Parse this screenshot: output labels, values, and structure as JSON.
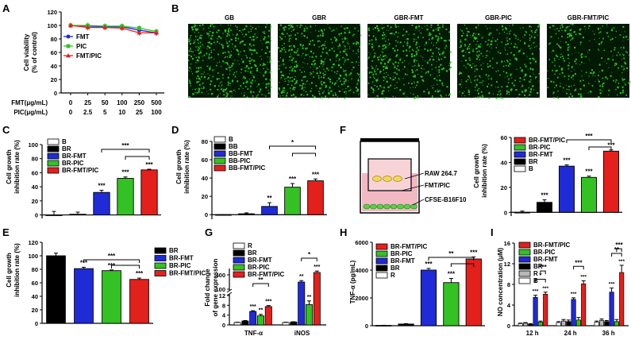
{
  "colors": {
    "white": "#ffffff",
    "black": "#000000",
    "gray": "#b8b8b8",
    "blue": "#1f2bd6",
    "green": "#34c124",
    "red": "#e3201b"
  },
  "panelA": {
    "letter": "A",
    "ylabel1": "Cell viability",
    "ylabel2": "(% of control)",
    "row1_label": "FMT(μg/mL)",
    "row2_label": "PIC(μg/mL)",
    "chart_data": {
      "type": "line",
      "categories": [
        "0",
        "25",
        "50",
        "100",
        "250",
        "500"
      ],
      "row2_categories": [
        "0",
        "2.5",
        "5",
        "10",
        "25",
        "100"
      ],
      "ylim": [
        0,
        120
      ],
      "yticks": [
        0,
        20,
        40,
        60,
        80,
        100,
        120
      ],
      "legend": [
        "FMT",
        "PIC",
        "FMT/PIC"
      ],
      "series": [
        {
          "name": "FMT",
          "color": "#1f2bd6",
          "marker": "circle",
          "values": [
            100,
            99,
            98,
            98,
            93,
            89
          ]
        },
        {
          "name": "PIC",
          "color": "#34c124",
          "marker": "square",
          "values": [
            100,
            100,
            99,
            99,
            96,
            91
          ]
        },
        {
          "name": "FMT/PIC",
          "color": "#e3201b",
          "marker": "triangle",
          "values": [
            100,
            97,
            97,
            96,
            89,
            89
          ]
        }
      ]
    }
  },
  "panelB": {
    "letter": "B",
    "images": [
      "GB",
      "GBR",
      "GBR-FMT",
      "GBR-PIC",
      "GBR-FMT/PIC"
    ]
  },
  "panelC": {
    "letter": "C",
    "ylabel1": "Cell growth",
    "ylabel2": "inhibition rate (%)",
    "chart_data": {
      "type": "bar",
      "categories": [
        "B",
        "BR",
        "BR-FMT",
        "BR-PIC",
        "BR-FMT/PIC"
      ],
      "values": [
        0,
        1,
        32,
        52,
        64
      ],
      "errors": [
        5,
        3,
        3,
        2,
        1
      ],
      "colors": [
        "#ffffff",
        "#000000",
        "#1f2bd6",
        "#34c124",
        "#e3201b"
      ],
      "labels": [
        "",
        "",
        "***",
        "***",
        "***"
      ],
      "ylim": [
        -5,
        100
      ],
      "yticks": [
        0,
        20,
        40,
        60,
        80,
        100
      ],
      "brackets": [
        {
          "from": 2,
          "to": 4,
          "label": "***"
        },
        {
          "from": 3,
          "to": 4,
          "label": ""
        }
      ]
    }
  },
  "panelD": {
    "letter": "D",
    "ylabel1": "Cell growth",
    "ylabel2": "inhibition rate (%)",
    "chart_data": {
      "type": "bar",
      "categories": [
        "B",
        "BB",
        "BB-FMT",
        "BB-PIC",
        "BB-FMT/PIC"
      ],
      "values": [
        0,
        1,
        9,
        30,
        37
      ],
      "errors": [
        0,
        1,
        4,
        4,
        2
      ],
      "colors": [
        "#ffffff",
        "#000000",
        "#1f2bd6",
        "#34c124",
        "#e3201b"
      ],
      "labels": [
        "",
        "",
        "**",
        "***",
        "***"
      ],
      "ylim": [
        -5,
        80
      ],
      "yticks": [
        0,
        20,
        40,
        60,
        80
      ],
      "brackets": [
        {
          "from": 2,
          "to": 4,
          "label": "*"
        },
        {
          "from": 3,
          "to": 4,
          "label": ""
        }
      ]
    }
  },
  "panelE": {
    "letter": "E",
    "ylabel1": "Cell growth",
    "ylabel2": "inhibition rate (%)",
    "chart_data": {
      "type": "bar",
      "categories": [
        "BR",
        "BR-FMT",
        "BR-PIC",
        "BR-FMT/PIC"
      ],
      "values": [
        100,
        81,
        78,
        65
      ],
      "errors": [
        4,
        2,
        1,
        2
      ],
      "colors": [
        "#000000",
        "#1f2bd6",
        "#34c124",
        "#e3201b"
      ],
      "labels": [
        "",
        "***",
        "***",
        "***"
      ],
      "ylim": [
        0,
        120
      ],
      "yticks": [
        0,
        20,
        40,
        60,
        80,
        100,
        120
      ],
      "brackets": [
        {
          "from": 1,
          "to": 3,
          "label": "***"
        },
        {
          "from": 2,
          "to": 3,
          "label": ""
        }
      ]
    }
  },
  "panelF": {
    "letter": "F",
    "schematic_labels": [
      "RAW 264.7",
      "FMT/PIC",
      "CFSE-B16F10"
    ],
    "ylabel1": "Cell growth",
    "ylabel2": "inhibition rate (%)",
    "chart_data": {
      "type": "bar",
      "categories": [
        "B",
        "BR",
        "BR-PIC",
        "BR-FMT",
        "BR-FMT/PIC"
      ],
      "bar_order": [
        "B",
        "BR",
        "BR-FMT",
        "BR-PIC",
        "BR-FMT/PIC"
      ],
      "values": [
        0,
        8,
        37,
        28,
        49
      ],
      "errors": [
        1,
        2,
        1,
        1,
        1
      ],
      "colors": [
        "#ffffff",
        "#000000",
        "#1f2bd6",
        "#34c124",
        "#e3201b"
      ],
      "labels": [
        "",
        "***",
        "***",
        "***",
        "***"
      ],
      "ylim": [
        -3,
        60
      ],
      "yticks": [
        0,
        20,
        40,
        60
      ],
      "legend": [
        "BR-FMT/PIC",
        "BR-PIC",
        "BR-FMT",
        "BR",
        "B"
      ],
      "brackets": [
        {
          "from": 2,
          "to": 4,
          "label": "***"
        },
        {
          "from": 3,
          "to": 4,
          "label": ""
        }
      ]
    }
  },
  "panelG": {
    "letter": "G",
    "ylabel1": "Fold change",
    "ylabel2": "of gene expression",
    "chart_data": {
      "type": "bar",
      "groups": [
        "TNF-α",
        "iNOS"
      ],
      "series": [
        {
          "name": "R",
          "color": "#ffffff",
          "values": [
            1,
            1
          ],
          "errors": [
            0.1,
            0.1
          ]
        },
        {
          "name": "BR",
          "color": "#000000",
          "values": [
            1.6,
            1.2
          ],
          "errors": [
            0.2,
            0.1
          ]
        },
        {
          "name": "BR-FMT",
          "color": "#1f2bd6",
          "values": [
            5.5,
            250
          ],
          "errors": [
            0.3,
            30
          ]
        },
        {
          "name": "BR-PIC",
          "color": "#34c124",
          "values": [
            3.7,
            8.3
          ],
          "errors": [
            0.6,
            1.5
          ]
        },
        {
          "name": "BR-FMT/PIC",
          "color": "#e3201b",
          "values": [
            7.5,
            450
          ],
          "errors": [
            0.4,
            80
          ]
        }
      ],
      "labels": [
        [
          "",
          "",
          "***",
          "**",
          "***"
        ],
        [
          "",
          "",
          "**",
          "**",
          "***"
        ]
      ],
      "yticks_lower": [
        0,
        4,
        8,
        12
      ],
      "yticks_upper": [
        100,
        400
      ],
      "axis_break": true,
      "brackets": [
        {
          "group": 0,
          "from": 2,
          "to": 4,
          "label": "**"
        },
        {
          "group": 1,
          "from": 2,
          "to": 4,
          "label": "*"
        }
      ]
    }
  },
  "panelH": {
    "letter": "H",
    "ylabel": "TNF-α (pg/mL)",
    "chart_data": {
      "type": "bar",
      "categories": [
        "R",
        "BR",
        "BR-FMT",
        "BR-PIC",
        "BR-FMT/PIC"
      ],
      "values": [
        20,
        120,
        4000,
        3100,
        4800
      ],
      "errors": [
        10,
        30,
        120,
        300,
        150
      ],
      "colors": [
        "#ffffff",
        "#000000",
        "#1f2bd6",
        "#34c124",
        "#e3201b"
      ],
      "labels": [
        "",
        "",
        "***",
        "***",
        "***"
      ],
      "ylim": [
        0,
        6000
      ],
      "yticks": [
        0,
        2000,
        4000,
        6000
      ],
      "legend": [
        "BR-FMT/PIC",
        "BR-PIC",
        "BR-FMT",
        "BR",
        "R"
      ],
      "brackets": [
        {
          "from": 2,
          "to": 4,
          "label": "**"
        },
        {
          "from": 3,
          "to": 4,
          "label": ""
        }
      ]
    }
  },
  "panelI": {
    "letter": "I",
    "ylabel": "NO concentration (μM)",
    "chart_data": {
      "type": "bar",
      "groups": [
        "12 h",
        "24 h",
        "36 h"
      ],
      "series": [
        {
          "name": "B",
          "color": "#ffffff",
          "values": [
            0.4,
            0.6,
            0.7
          ],
          "errors": [
            0.1,
            0.2,
            0.2
          ]
        },
        {
          "name": "R",
          "color": "#b8b8b8",
          "values": [
            0.5,
            0.9,
            1.0
          ],
          "errors": [
            0.1,
            0.3,
            0.3
          ]
        },
        {
          "name": "BR",
          "color": "#000000",
          "values": [
            0.3,
            0.8,
            0.8
          ],
          "errors": [
            0.1,
            0.3,
            0.2
          ]
        },
        {
          "name": "BR-FMT",
          "color": "#1f2bd6",
          "values": [
            5.5,
            5.1,
            6.5
          ],
          "errors": [
            0.4,
            0.3,
            0.8
          ]
        },
        {
          "name": "BR-PIC",
          "color": "#34c124",
          "values": [
            0.7,
            1.1,
            0.8
          ],
          "errors": [
            0.2,
            0.5,
            0.4
          ]
        },
        {
          "name": "BR-FMT/PIC",
          "color": "#e3201b",
          "values": [
            6.1,
            8.1,
            10.3
          ],
          "errors": [
            0.4,
            0.6,
            1.4
          ]
        }
      ],
      "labels": [
        [
          "",
          "",
          "",
          "***",
          "",
          "***"
        ],
        [
          "",
          "",
          "",
          "***",
          "",
          "***"
        ],
        [
          "",
          "",
          "",
          "***",
          "",
          "***"
        ]
      ],
      "ylim": [
        0,
        16
      ],
      "yticks": [
        0,
        4,
        8,
        12,
        16
      ],
      "legend": [
        "BR-FMT/PIC",
        "BR-PIC",
        "BR-FMT",
        "BR",
        "R",
        "B"
      ],
      "brackets": [
        {
          "group": 0,
          "from": 3,
          "to": 5,
          "label": "*"
        },
        {
          "group": 0,
          "from": 4,
          "to": 5,
          "label": "***"
        },
        {
          "group": 1,
          "from": 3,
          "to": 5,
          "label": "***"
        },
        {
          "group": 2,
          "from": 3,
          "to": 5,
          "label": "**"
        },
        {
          "group": 2,
          "from": 4,
          "to": 5,
          "label": "***"
        }
      ]
    }
  }
}
